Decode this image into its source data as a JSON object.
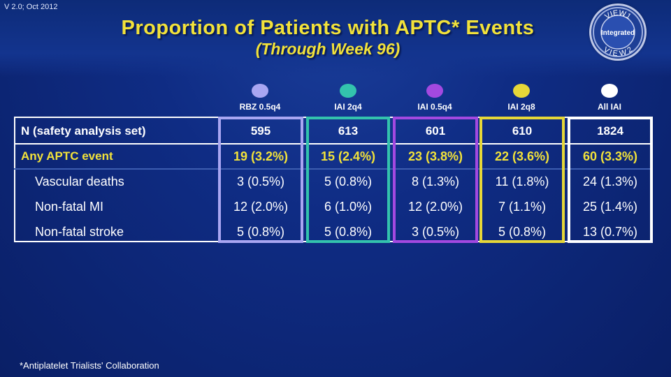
{
  "version": "V 2.0; Oct 2012",
  "title": "Proportion of Patients with APTC* Events",
  "subtitle": "(Through Week 96)",
  "badge": {
    "top": "VIEW1",
    "center": "Integrated",
    "bottom": "VIEW2"
  },
  "columns": [
    {
      "label": "RBZ 0.5q4",
      "color": "#a9a6f2"
    },
    {
      "label": "IAI 2q4",
      "color": "#33c3ad"
    },
    {
      "label": "IAI 0.5q4",
      "color": "#a349e0"
    },
    {
      "label": "IAI 2q8",
      "color": "#e6d738"
    },
    {
      "label": "All IAI",
      "color": "#ffffff"
    }
  ],
  "rows": [
    {
      "label": "N (safety analysis set)",
      "values": [
        "595",
        "613",
        "601",
        "610",
        "1824"
      ]
    },
    {
      "label": "Any APTC event",
      "values": [
        "19 (3.2%)",
        "15 (2.4%)",
        "23 (3.8%)",
        "22 (3.6%)",
        "60 (3.3%)"
      ]
    },
    {
      "label": "Vascular deaths",
      "values": [
        "3 (0.5%)",
        "5 (0.8%)",
        "8 (1.3%)",
        "11 (1.8%)",
        "24 (1.3%)"
      ]
    },
    {
      "label": "Non-fatal MI",
      "values": [
        "12 (2.0%)",
        "6 (1.0%)",
        "12 (2.0%)",
        "7 (1.1%)",
        "25 (1.4%)"
      ]
    },
    {
      "label": "Non-fatal stroke",
      "values": [
        "5 (0.8%)",
        "5 (0.8%)",
        "3 (0.5%)",
        "5 (0.8%)",
        "13 (0.7%)"
      ]
    }
  ],
  "footnote": "*Antiplatelet Trialists' Collaboration"
}
